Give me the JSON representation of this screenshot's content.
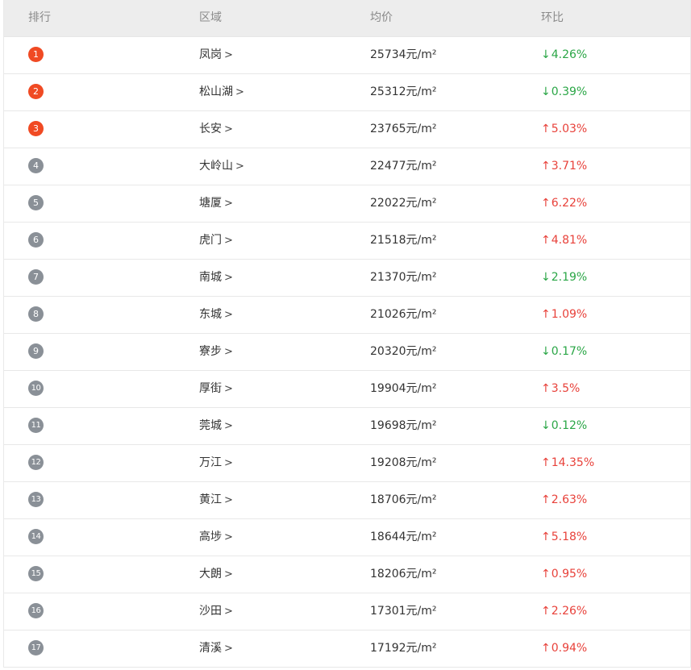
{
  "headers": {
    "rank": "排行",
    "area": "区域",
    "price": "均价",
    "change": "环比"
  },
  "colors": {
    "top_rank": "#f04a23",
    "other_rank": "#8a9097",
    "up": "#e8413a",
    "down": "#2aa646"
  },
  "rows": [
    {
      "rank": "1",
      "area": "凤岗",
      "price": "25734元/m²",
      "change": "4.26%",
      "dir": "down"
    },
    {
      "rank": "2",
      "area": "松山湖",
      "price": "25312元/m²",
      "change": "0.39%",
      "dir": "down"
    },
    {
      "rank": "3",
      "area": "长安",
      "price": "23765元/m²",
      "change": "5.03%",
      "dir": "up"
    },
    {
      "rank": "4",
      "area": "大岭山",
      "price": "22477元/m²",
      "change": "3.71%",
      "dir": "up"
    },
    {
      "rank": "5",
      "area": "塘厦",
      "price": "22022元/m²",
      "change": "6.22%",
      "dir": "up"
    },
    {
      "rank": "6",
      "area": "虎门",
      "price": "21518元/m²",
      "change": "4.81%",
      "dir": "up"
    },
    {
      "rank": "7",
      "area": "南城",
      "price": "21370元/m²",
      "change": "2.19%",
      "dir": "down"
    },
    {
      "rank": "8",
      "area": "东城",
      "price": "21026元/m²",
      "change": "1.09%",
      "dir": "up"
    },
    {
      "rank": "9",
      "area": "寮步",
      "price": "20320元/m²",
      "change": "0.17%",
      "dir": "down"
    },
    {
      "rank": "10",
      "area": "厚街",
      "price": "19904元/m²",
      "change": "3.5%",
      "dir": "up"
    },
    {
      "rank": "11",
      "area": "莞城",
      "price": "19698元/m²",
      "change": "0.12%",
      "dir": "down"
    },
    {
      "rank": "12",
      "area": "万江",
      "price": "19208元/m²",
      "change": "14.35%",
      "dir": "up"
    },
    {
      "rank": "13",
      "area": "黄江",
      "price": "18706元/m²",
      "change": "2.63%",
      "dir": "up"
    },
    {
      "rank": "14",
      "area": "高埗",
      "price": "18644元/m²",
      "change": "5.18%",
      "dir": "up"
    },
    {
      "rank": "15",
      "area": "大朗",
      "price": "18206元/m²",
      "change": "0.95%",
      "dir": "up"
    },
    {
      "rank": "16",
      "area": "沙田",
      "price": "17301元/m²",
      "change": "2.26%",
      "dir": "up"
    },
    {
      "rank": "17",
      "area": "清溪",
      "price": "17192元/m²",
      "change": "0.94%",
      "dir": "up"
    }
  ]
}
